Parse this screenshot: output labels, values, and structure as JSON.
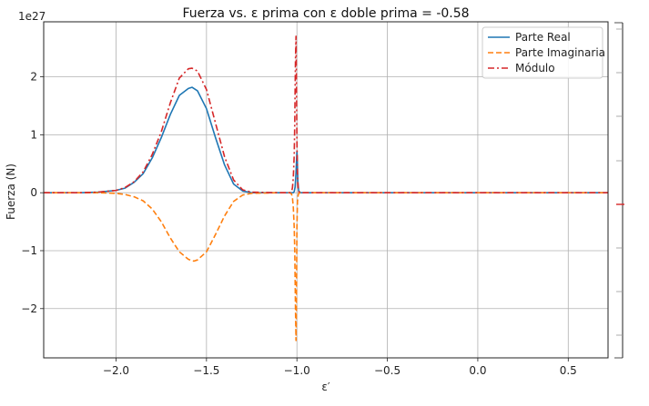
{
  "chart_data": {
    "type": "line",
    "title": "Fuerza vs. ε prima con ε doble prima = -0.58",
    "xlabel": "ε′",
    "ylabel": "Fuerza (N)",
    "y_scale_label": "1e27",
    "xlim": [
      -2.4,
      0.72
    ],
    "ylim": [
      -2.85,
      2.95
    ],
    "x_ticks": [
      -2.0,
      -1.5,
      -1.0,
      -0.5,
      0.0,
      0.5
    ],
    "x_tick_labels": [
      "−2.0",
      "−1.5",
      "−1.0",
      "−0.5",
      "0.0",
      "0.5"
    ],
    "y_ticks": [
      -2,
      -1,
      0,
      1,
      2
    ],
    "y_tick_labels": [
      "−2",
      "−1",
      "0",
      "1",
      "2"
    ],
    "grid": true,
    "legend_position": "top-right",
    "series": [
      {
        "name": "Parte Real",
        "color": "#1f77b4",
        "style": "solid",
        "x": [
          -2.4,
          -2.2,
          -2.1,
          -2.0,
          -1.95,
          -1.9,
          -1.85,
          -1.8,
          -1.75,
          -1.7,
          -1.65,
          -1.6,
          -1.58,
          -1.55,
          -1.5,
          -1.45,
          -1.4,
          -1.35,
          -1.3,
          -1.25,
          -1.1,
          -1.03,
          -1.02,
          -1.015,
          -1.01,
          -1.005,
          -1.0,
          -0.998,
          -0.995,
          -0.99,
          -0.98,
          -0.95,
          -0.5,
          0.0,
          0.72
        ],
        "y": [
          0,
          0,
          0.01,
          0.04,
          0.08,
          0.18,
          0.33,
          0.6,
          0.95,
          1.35,
          1.68,
          1.8,
          1.82,
          1.76,
          1.45,
          0.95,
          0.48,
          0.15,
          0.03,
          0,
          0,
          0,
          0,
          0.02,
          0.1,
          0.35,
          0.72,
          0.6,
          0.2,
          0.03,
          0,
          0,
          0,
          0,
          0
        ]
      },
      {
        "name": "Parte Imaginaria",
        "color": "#ff7f0e",
        "style": "dashed",
        "x": [
          -2.4,
          -2.2,
          -2.1,
          -2.0,
          -1.95,
          -1.9,
          -1.85,
          -1.8,
          -1.75,
          -1.7,
          -1.65,
          -1.6,
          -1.57,
          -1.55,
          -1.5,
          -1.45,
          -1.4,
          -1.35,
          -1.3,
          -1.25,
          -1.1,
          -1.04,
          -1.03,
          -1.025,
          -1.02,
          -1.015,
          -1.012,
          -1.01,
          -1.008,
          -1.005,
          -1.003,
          -1.0,
          -0.997,
          -0.993,
          -0.99,
          -0.98,
          -0.95,
          -0.5,
          0.0,
          0.72
        ],
        "y": [
          0,
          0,
          0,
          -0.01,
          -0.03,
          -0.07,
          -0.14,
          -0.28,
          -0.5,
          -0.78,
          -1.02,
          -1.15,
          -1.18,
          -1.16,
          -1.02,
          -0.72,
          -0.4,
          -0.15,
          -0.04,
          -0.01,
          0,
          0,
          -0.02,
          -0.08,
          -0.25,
          -0.6,
          -1.0,
          -1.5,
          -2.0,
          -2.55,
          -2.0,
          -0.6,
          -0.15,
          -0.04,
          -0.01,
          0,
          0,
          0,
          0,
          0
        ]
      },
      {
        "name": "Módulo",
        "color": "#d62728",
        "style": "dashdot",
        "x": [
          -2.4,
          -2.2,
          -2.1,
          -2.0,
          -1.95,
          -1.9,
          -1.85,
          -1.8,
          -1.75,
          -1.7,
          -1.65,
          -1.6,
          -1.58,
          -1.55,
          -1.5,
          -1.45,
          -1.4,
          -1.35,
          -1.3,
          -1.25,
          -1.1,
          -1.04,
          -1.03,
          -1.025,
          -1.02,
          -1.015,
          -1.012,
          -1.01,
          -1.008,
          -1.005,
          -1.003,
          -1.0,
          -0.997,
          -0.993,
          -0.99,
          -0.98,
          -0.95,
          -0.5,
          0.0,
          0.72
        ],
        "y": [
          0,
          0,
          0.01,
          0.04,
          0.09,
          0.19,
          0.36,
          0.66,
          1.05,
          1.55,
          1.98,
          2.14,
          2.15,
          2.1,
          1.78,
          1.2,
          0.62,
          0.22,
          0.05,
          0.01,
          0,
          0,
          0.02,
          0.08,
          0.26,
          0.65,
          1.2,
          1.8,
          2.3,
          2.7,
          2.1,
          0.9,
          0.3,
          0.06,
          0.02,
          0,
          0,
          0,
          0,
          0
        ]
      }
    ]
  }
}
